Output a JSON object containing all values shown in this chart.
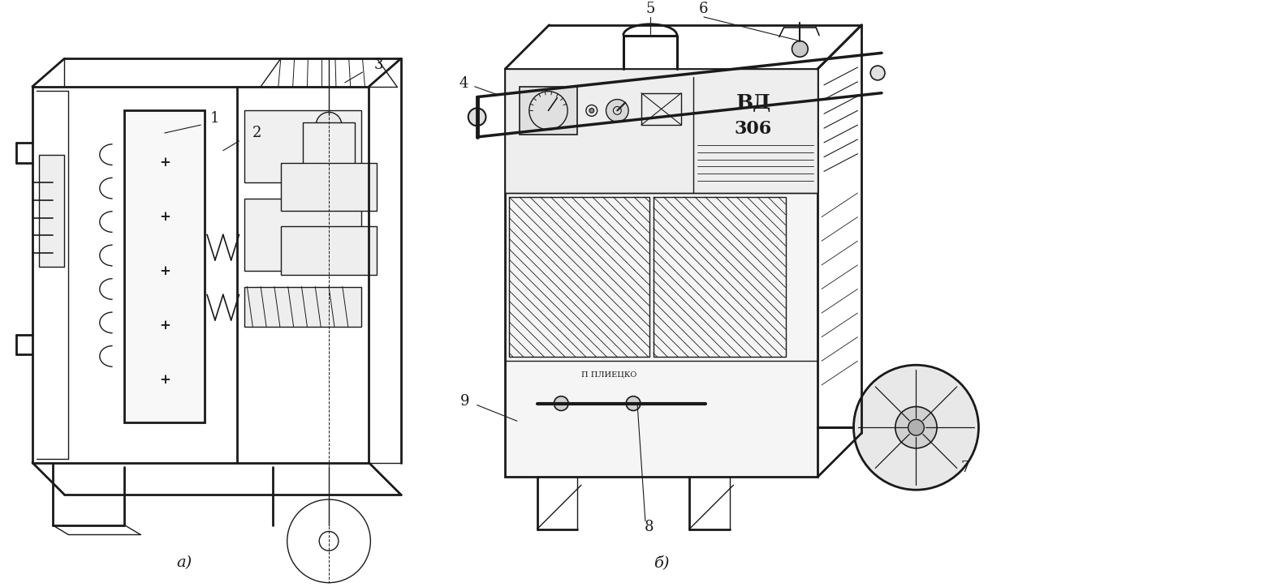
{
  "background_color": "#ffffff",
  "figsize": [
    15.73,
    7.24
  ],
  "dpi": 100,
  "label_a": "a)",
  "label_b": "б)",
  "label_1": "1",
  "label_2": "2",
  "label_3": "3",
  "label_4": "4",
  "label_5": "5",
  "label_6": "6",
  "label_7": "7",
  "label_8": "8",
  "label_9": "9",
  "line_color": "#1a1a1a",
  "line_width": 1.0,
  "thick_line": 2.0,
  "font_size_label": 13,
  "font_size_caption": 14
}
